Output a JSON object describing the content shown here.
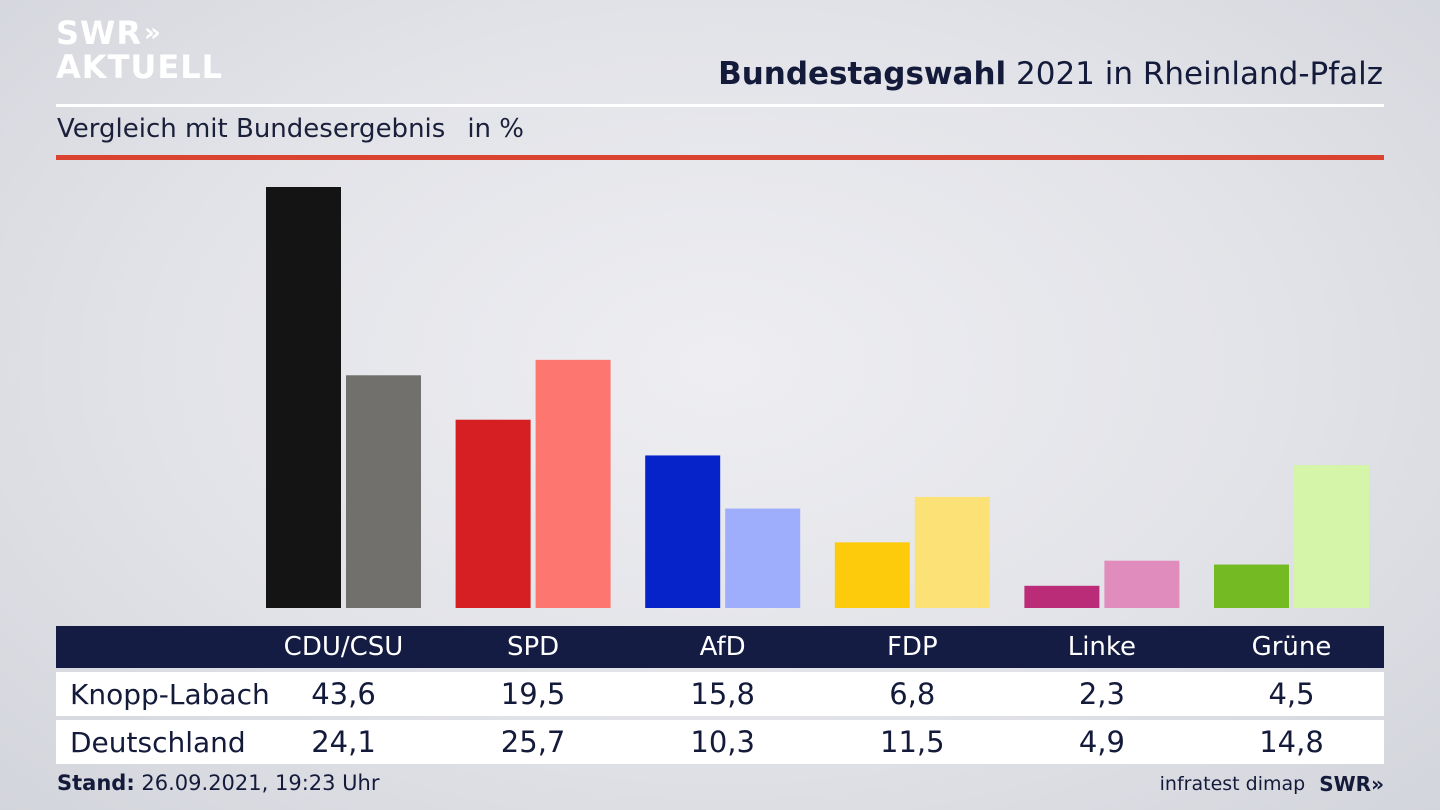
{
  "brand": {
    "logo_line1": "SWR",
    "logo_chevrons": "»",
    "logo_line2": "AKTUELL"
  },
  "header": {
    "title_bold": "Bundestagswahl",
    "title_rest": " 2021 in Rheinland-Pfalz"
  },
  "subheader": {
    "label": "Vergleich mit Bundesergebnis",
    "unit": "in %"
  },
  "colors": {
    "accent_red": "#d9432f",
    "table_header": "#151c44",
    "parties": {
      "CDU/CSU": [
        "#141414",
        "#72706d"
      ],
      "SPD": [
        "#d61f22",
        "#fd766f"
      ],
      "AfD": [
        "#0623c9",
        "#9fadfd"
      ],
      "FDP": [
        "#fdca0c",
        "#fce276"
      ],
      "Linke": [
        "#bb2c78",
        "#e08cbc"
      ],
      "Grüne": [
        "#73ba23",
        "#d5f5a8"
      ]
    }
  },
  "chart_data": {
    "type": "bar",
    "categories": [
      "CDU/CSU",
      "SPD",
      "AfD",
      "FDP",
      "Linke",
      "Grüne"
    ],
    "series": [
      {
        "name": "Knopp-Labach",
        "values": [
          43.6,
          19.5,
          15.8,
          6.8,
          2.3,
          4.5
        ]
      },
      {
        "name": "Deutschland",
        "values": [
          24.1,
          25.7,
          10.3,
          11.5,
          4.9,
          14.8
        ]
      }
    ],
    "title": "Bundestagswahl 2021 in Rheinland-Pfalz",
    "subtitle": "Vergleich mit Bundesergebnis",
    "ylabel": "in %",
    "ylim": [
      0,
      43.6
    ],
    "grid": false
  },
  "table": {
    "headers": [
      "CDU/CSU",
      "SPD",
      "AfD",
      "FDP",
      "Linke",
      "Grüne"
    ],
    "rows": [
      {
        "label": "Knopp-Labach",
        "values": [
          "43,6",
          "19,5",
          "15,8",
          "6,8",
          "2,3",
          "4,5"
        ]
      },
      {
        "label": "Deutschland",
        "values": [
          "24,1",
          "25,7",
          "10,3",
          "11,5",
          "4,9",
          "14,8"
        ]
      }
    ]
  },
  "footer": {
    "stand_label": "Stand:",
    "stand_value": " 26.09.2021, 19:23 Uhr",
    "source": "infratest dimap",
    "source_logo": "SWR»"
  }
}
